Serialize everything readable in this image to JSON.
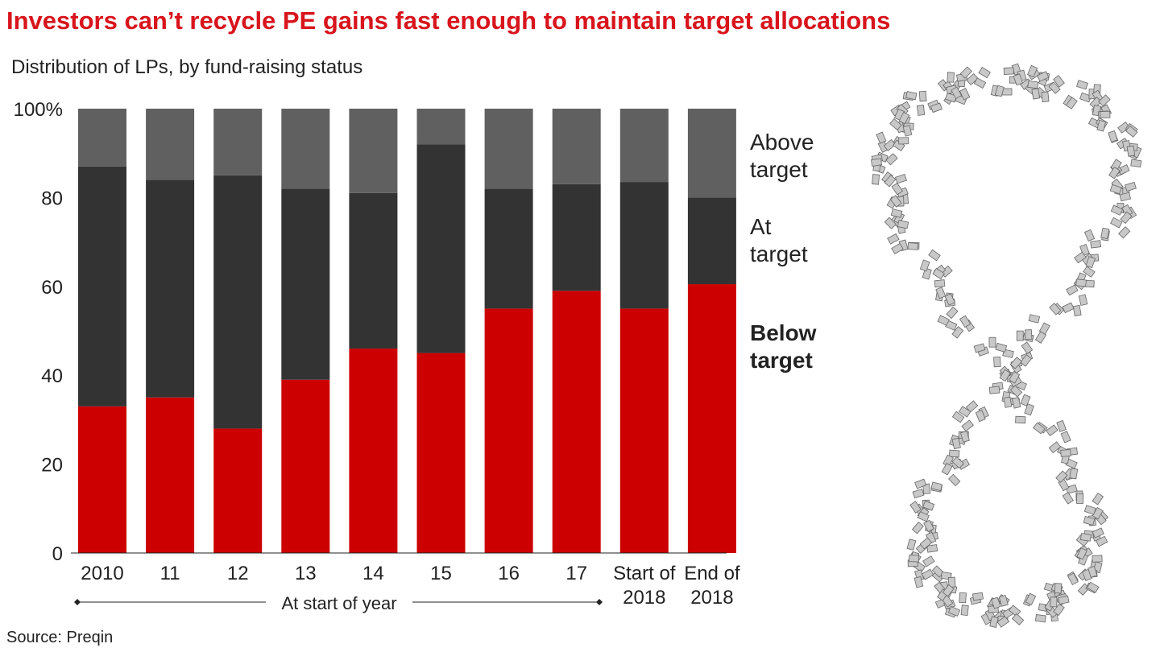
{
  "title": "Investors can’t recycle PE gains fast enough to maintain target allocations",
  "subtitle": "Distribution of LPs, by fund-raising status",
  "source": "Source: Preqin",
  "chart_data": {
    "type": "bar",
    "stacked": true,
    "categories": [
      "2010",
      "11",
      "12",
      "13",
      "14",
      "15",
      "16",
      "17",
      "Start of 2018",
      "End of 2018"
    ],
    "category_lines": [
      [
        "2010"
      ],
      [
        "11"
      ],
      [
        "12"
      ],
      [
        "13"
      ],
      [
        "14"
      ],
      [
        "15"
      ],
      [
        "16"
      ],
      [
        "17"
      ],
      [
        "Start of",
        "2018"
      ],
      [
        "End of",
        "2018"
      ]
    ],
    "series": [
      {
        "name": "Below target",
        "color": "#cc0000",
        "values": [
          33,
          35,
          28,
          39,
          46,
          45,
          55,
          59,
          55,
          60.5
        ]
      },
      {
        "name": "At target",
        "color": "#333333",
        "values": [
          54,
          49,
          57,
          43,
          35,
          47,
          27,
          24,
          28.5,
          19.5
        ]
      },
      {
        "name": "Above target",
        "color": "#606060",
        "values": [
          13,
          16,
          15,
          18,
          19,
          8,
          18,
          17,
          16.5,
          20
        ]
      }
    ],
    "legend_lines": [
      [
        "Above",
        "target"
      ],
      [
        "At",
        "target"
      ],
      [
        "Below",
        "target"
      ]
    ],
    "legend_placement": "right",
    "yticks": [
      "0",
      "20",
      "40",
      "60",
      "80",
      "100%"
    ],
    "ylim": [
      0,
      100
    ],
    "grid": false,
    "xgroup_label": "At start of year"
  }
}
